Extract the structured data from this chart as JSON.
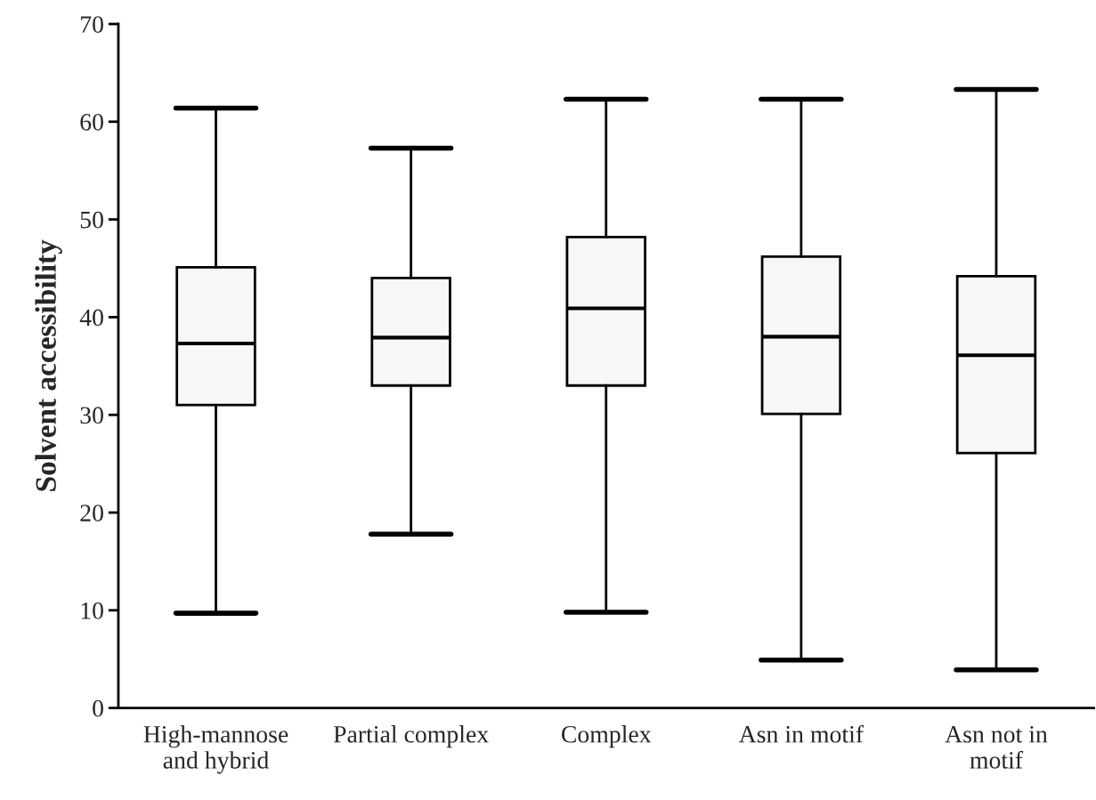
{
  "chart_data": {
    "type": "box",
    "ylabel": "Solvent accessibility",
    "categories": [
      "High-mannose\nand hybrid",
      "Partial complex",
      "Complex",
      "Asn in motif",
      "Asn not in\nmotif"
    ],
    "boxes": [
      {
        "low": 9.7,
        "q1": 31,
        "median": 37.3,
        "q3": 45.1,
        "high": 61.4
      },
      {
        "low": 17.8,
        "q1": 33,
        "median": 37.9,
        "q3": 44,
        "high": 57.3
      },
      {
        "low": 9.8,
        "q1": 33,
        "median": 40.9,
        "q3": 48.2,
        "high": 62.3
      },
      {
        "low": 4.9,
        "q1": 30.1,
        "median": 38,
        "q3": 46.2,
        "high": 62.3
      },
      {
        "low": 3.9,
        "q1": 26.1,
        "median": 36.1,
        "q3": 44.2,
        "high": 63.3
      }
    ],
    "color": "#f7f7f7",
    "ylim": [
      0,
      70
    ],
    "yticks": [
      0,
      10,
      20,
      30,
      40,
      50,
      60,
      70
    ],
    "grid": false
  }
}
